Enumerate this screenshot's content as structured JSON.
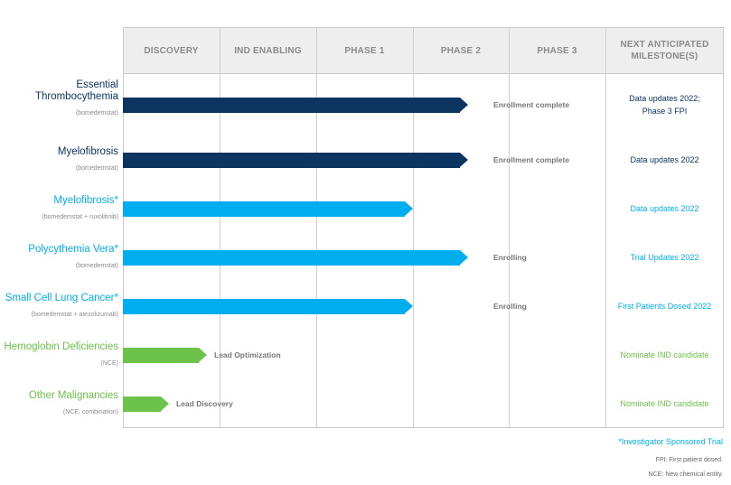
{
  "colors": {
    "dark_blue": "#0c3460",
    "light_blue": "#00aeef",
    "green": "#6cc24a",
    "status_grey": "#777777"
  },
  "columns": [
    "DISCOVERY",
    "IND ENABLING",
    "PHASE 1",
    "PHASE 2",
    "PHASE 3",
    "NEXT ANTICIPATED MILESTONE(S)"
  ],
  "programs": [
    {
      "title_lines": [
        "Essential",
        "Thrombocythemia"
      ],
      "subtitle": "(bomedemstat)",
      "color": "dark_blue",
      "stage_reached": "PHASE 2",
      "status": "Enrollment complete",
      "milestone_lines": [
        "Data updates 2022;",
        "Phase 3 FPI"
      ]
    },
    {
      "title_lines": [
        "Myelofibrosis"
      ],
      "subtitle": "(bomedemstat)",
      "color": "dark_blue",
      "stage_reached": "PHASE 2",
      "status": "Enrollment complete",
      "milestone_lines": [
        "Data updates 2022"
      ]
    },
    {
      "title_lines": [
        "Myelofibrosis*"
      ],
      "subtitle": "(bomedemstat + ruxolitinib)",
      "color": "light_blue",
      "stage_reached": "PHASE 1",
      "status": "",
      "milestone_lines": [
        "Data updates 2022"
      ]
    },
    {
      "title_lines": [
        "Polycythemia Vera*"
      ],
      "subtitle": "(bomedemstat)",
      "color": "light_blue",
      "stage_reached": "PHASE 2",
      "status": "Enrolling",
      "milestone_lines": [
        "Trial Updates 2022"
      ]
    },
    {
      "title_lines": [
        "Small Cell Lung Cancer*"
      ],
      "subtitle": "(bomedemstat + atezolizumab)",
      "color": "light_blue",
      "stage_reached": "PHASE 1",
      "status": "Enrolling",
      "milestone_lines": [
        "First Patients Dosed 2022"
      ]
    },
    {
      "title_lines": [
        "Hemoglobin Deficiencies"
      ],
      "subtitle": "(NCE)",
      "color": "green",
      "stage_reached": "DISCOVERY",
      "status": "Lead Optimization",
      "milestone_lines": [
        "Nominate IND candidate"
      ]
    },
    {
      "title_lines": [
        "Other Malignancies"
      ],
      "subtitle": "(NCE, combination)",
      "color": "green",
      "stage_reached": "DISCOVERY",
      "status": "Lead Discovery",
      "milestone_lines": [
        "Nominate IND candidate"
      ]
    }
  ],
  "footnotes": {
    "investigator": "*Investigator Sponsored Trial",
    "fpi": "FPI: First patient dosed.",
    "nce": "NCE: New chemical entity."
  }
}
